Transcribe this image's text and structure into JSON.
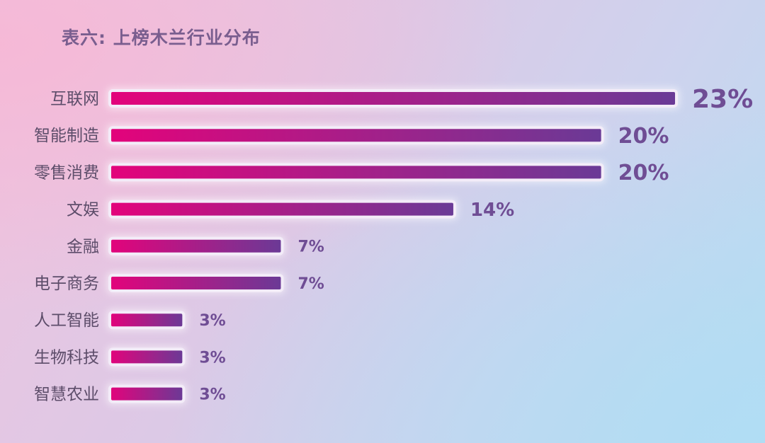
{
  "title": "表六: 上榜木兰行业分布",
  "colors": {
    "bar_start": "#e3037b",
    "bar_end": "#6a3a96",
    "bar_outline": "#f3ecf8",
    "value_text": "#6f4d94",
    "category_text": "#5d4d6a"
  },
  "chart_data": {
    "type": "bar",
    "orientation": "horizontal",
    "title": "表六: 上榜木兰行业分布",
    "categories": [
      "互联网",
      "智能制造",
      "零售消费",
      "文娱",
      "金融",
      "电子商务",
      "人工智能",
      "生物科技",
      "智慧农业"
    ],
    "values": [
      23,
      20,
      20,
      14,
      7,
      7,
      3,
      3,
      3
    ],
    "value_labels": [
      "23%",
      "20%",
      "20%",
      "14%",
      "7%",
      "7%",
      "3%",
      "3%",
      "3%"
    ],
    "unit": "%",
    "xlim": [
      0,
      23
    ],
    "grid": false,
    "legend": "none"
  }
}
